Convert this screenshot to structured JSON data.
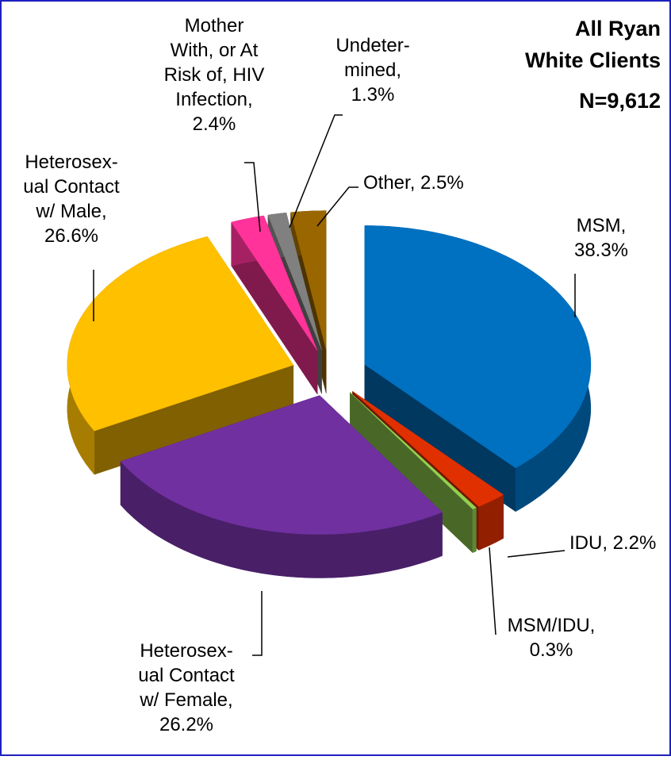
{
  "chart_data": {
    "type": "pie3d",
    "title": "All Ryan White Clients",
    "subtitle": "N=9,612",
    "values": [
      38.3,
      2.2,
      0.3,
      26.2,
      26.6,
      2.4,
      1.3,
      2.5
    ],
    "value_labels": [
      "MSM, 38.3%",
      "IDU, 2.2%",
      "MSM/IDU, 0.3%",
      "Heterosex-ual Contact w/ Female, 26.2%",
      "Heterosex-ual Contact w/ Male, 26.6%",
      "Mother With, or At Risk of, HIV Infection, 2.4%",
      "Undeter-mined, 1.3%",
      "Other, 2.5%"
    ],
    "colors": [
      "#0070c0",
      "#e03000",
      "#92d050",
      "#7030a0",
      "#ffc000",
      "#ff3399",
      "#808080",
      "#996600"
    ]
  }
}
